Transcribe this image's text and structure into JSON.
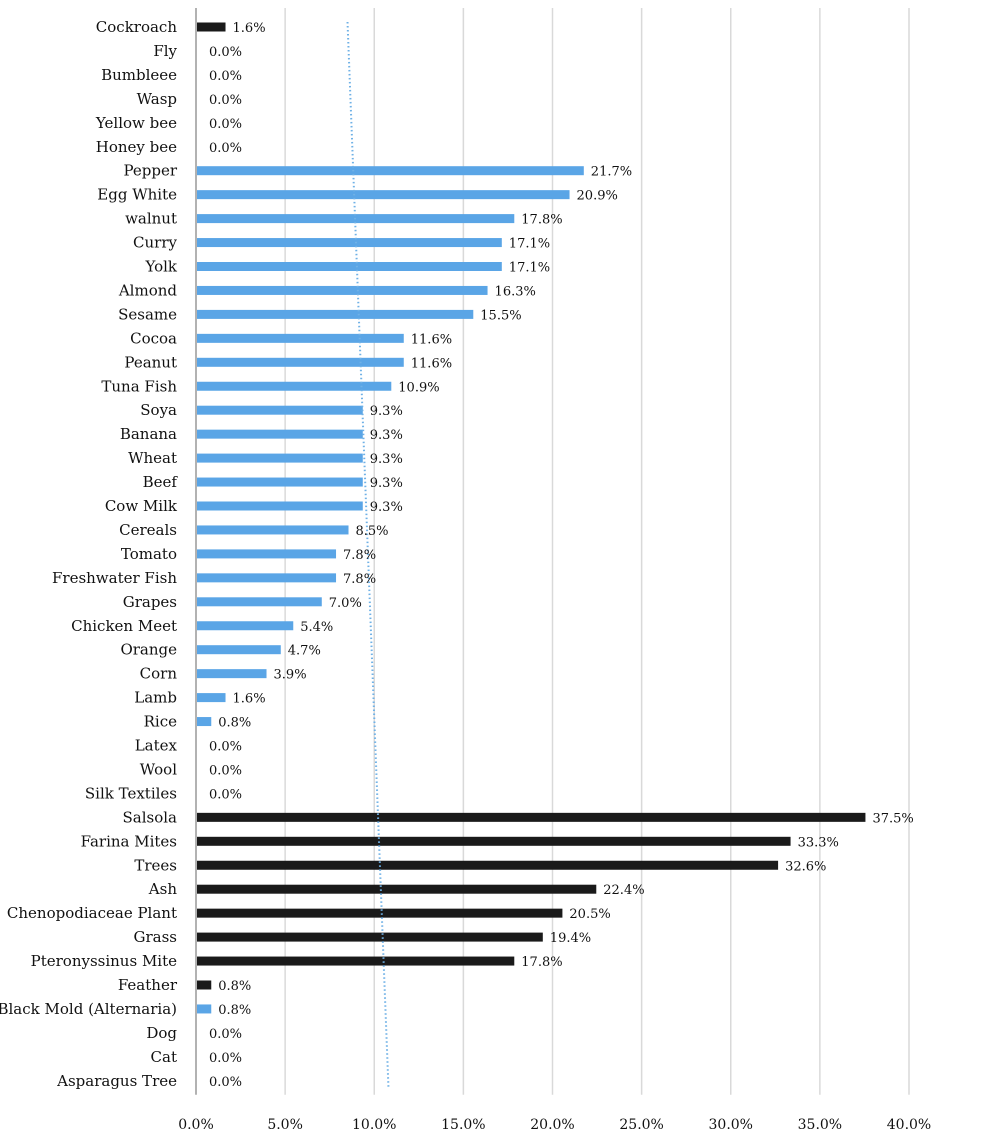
{
  "chart_data": {
    "type": "bar",
    "orientation": "horizontal",
    "title": "",
    "xlabel": "",
    "ylabel": "",
    "xlim": [
      0,
      40
    ],
    "x_ticks": [
      "0.0%",
      "5.0%",
      "10.0%",
      "15.0%",
      "20.0%",
      "25.0%",
      "30.0%",
      "35.0%",
      "40.0%"
    ],
    "grid": "vertical",
    "legend": "none",
    "colors": {
      "blue": "#5aa5e6",
      "black": "#1a1a1a"
    },
    "trendline": {
      "style": "dotted",
      "color": "#6fb1e6",
      "start_value": 8.5,
      "end_value": 10.8
    },
    "categories": [
      {
        "label": "Cockroach",
        "value": 1.6,
        "value_label": "1.6%",
        "color": "black"
      },
      {
        "label": "Fly",
        "value": 0.0,
        "value_label": "0.0%",
        "color": "blue"
      },
      {
        "label": "Bumbleee",
        "value": 0.0,
        "value_label": "0.0%",
        "color": "blue"
      },
      {
        "label": "Wasp",
        "value": 0.0,
        "value_label": "0.0%",
        "color": "blue"
      },
      {
        "label": "Yellow bee",
        "value": 0.0,
        "value_label": "0.0%",
        "color": "blue"
      },
      {
        "label": "Honey bee",
        "value": 0.0,
        "value_label": "0.0%",
        "color": "blue"
      },
      {
        "label": "Pepper",
        "value": 21.7,
        "value_label": "21.7%",
        "color": "blue"
      },
      {
        "label": "Egg White",
        "value": 20.9,
        "value_label": "20.9%",
        "color": "blue"
      },
      {
        "label": "walnut",
        "value": 17.8,
        "value_label": "17.8%",
        "color": "blue"
      },
      {
        "label": "Curry",
        "value": 17.1,
        "value_label": "17.1%",
        "color": "blue"
      },
      {
        "label": "Yolk",
        "value": 17.1,
        "value_label": "17.1%",
        "color": "blue"
      },
      {
        "label": "Almond",
        "value": 16.3,
        "value_label": "16.3%",
        "color": "blue"
      },
      {
        "label": "Sesame",
        "value": 15.5,
        "value_label": "15.5%",
        "color": "blue"
      },
      {
        "label": "Cocoa",
        "value": 11.6,
        "value_label": "11.6%",
        "color": "blue"
      },
      {
        "label": "Peanut",
        "value": 11.6,
        "value_label": "11.6%",
        "color": "blue"
      },
      {
        "label": "Tuna Fish",
        "value": 10.9,
        "value_label": "10.9%",
        "color": "blue"
      },
      {
        "label": "Soya",
        "value": 9.3,
        "value_label": "9.3%",
        "color": "blue"
      },
      {
        "label": "Banana",
        "value": 9.3,
        "value_label": "9.3%",
        "color": "blue"
      },
      {
        "label": "Wheat",
        "value": 9.3,
        "value_label": "9.3%",
        "color": "blue"
      },
      {
        "label": "Beef",
        "value": 9.3,
        "value_label": "9.3%",
        "color": "blue"
      },
      {
        "label": "Cow Milk",
        "value": 9.3,
        "value_label": "9.3%",
        "color": "blue"
      },
      {
        "label": "Cereals",
        "value": 8.5,
        "value_label": "8.5%",
        "color": "blue"
      },
      {
        "label": "Tomato",
        "value": 7.8,
        "value_label": "7.8%",
        "color": "blue"
      },
      {
        "label": "Freshwater Fish",
        "value": 7.8,
        "value_label": "7.8%",
        "color": "blue"
      },
      {
        "label": "Grapes",
        "value": 7.0,
        "value_label": "7.0%",
        "color": "blue"
      },
      {
        "label": "Chicken Meet",
        "value": 5.4,
        "value_label": "5.4%",
        "color": "blue"
      },
      {
        "label": "Orange",
        "value": 4.7,
        "value_label": "4.7%",
        "color": "blue"
      },
      {
        "label": "Corn",
        "value": 3.9,
        "value_label": "3.9%",
        "color": "blue"
      },
      {
        "label": "Lamb",
        "value": 1.6,
        "value_label": "1.6%",
        "color": "blue"
      },
      {
        "label": "Rice",
        "value": 0.8,
        "value_label": "0.8%",
        "color": "blue"
      },
      {
        "label": "Latex",
        "value": 0.0,
        "value_label": "0.0%",
        "color": "blue"
      },
      {
        "label": "Wool",
        "value": 0.0,
        "value_label": "0.0%",
        "color": "blue"
      },
      {
        "label": "Silk Textiles",
        "value": 0.0,
        "value_label": "0.0%",
        "color": "blue"
      },
      {
        "label": "Salsola",
        "value": 37.5,
        "value_label": "37.5%",
        "color": "black"
      },
      {
        "label": "Farina Mites",
        "value": 33.3,
        "value_label": "33.3%",
        "color": "black"
      },
      {
        "label": "Trees",
        "value": 32.6,
        "value_label": "32.6%",
        "color": "black"
      },
      {
        "label": "Ash",
        "value": 22.4,
        "value_label": "22.4%",
        "color": "black"
      },
      {
        "label": "Chenopodiaceae Plant",
        "value": 20.5,
        "value_label": "20.5%",
        "color": "black"
      },
      {
        "label": "Grass",
        "value": 19.4,
        "value_label": "19.4%",
        "color": "black"
      },
      {
        "label": "Pteronyssinus Mite",
        "value": 17.8,
        "value_label": "17.8%",
        "color": "black"
      },
      {
        "label": "Feather",
        "value": 0.8,
        "value_label": "0.8%",
        "color": "black"
      },
      {
        "label": "Black Mold (Alternaria)",
        "value": 0.8,
        "value_label": "0.8%",
        "color": "blue"
      },
      {
        "label": "Dog",
        "value": 0.0,
        "value_label": "0.0%",
        "color": "blue"
      },
      {
        "label": "Cat",
        "value": 0.0,
        "value_label": "0.0%",
        "color": "blue"
      },
      {
        "label": "Asparagus Tree",
        "value": 0.0,
        "value_label": "0.0%",
        "color": "blue"
      }
    ]
  }
}
